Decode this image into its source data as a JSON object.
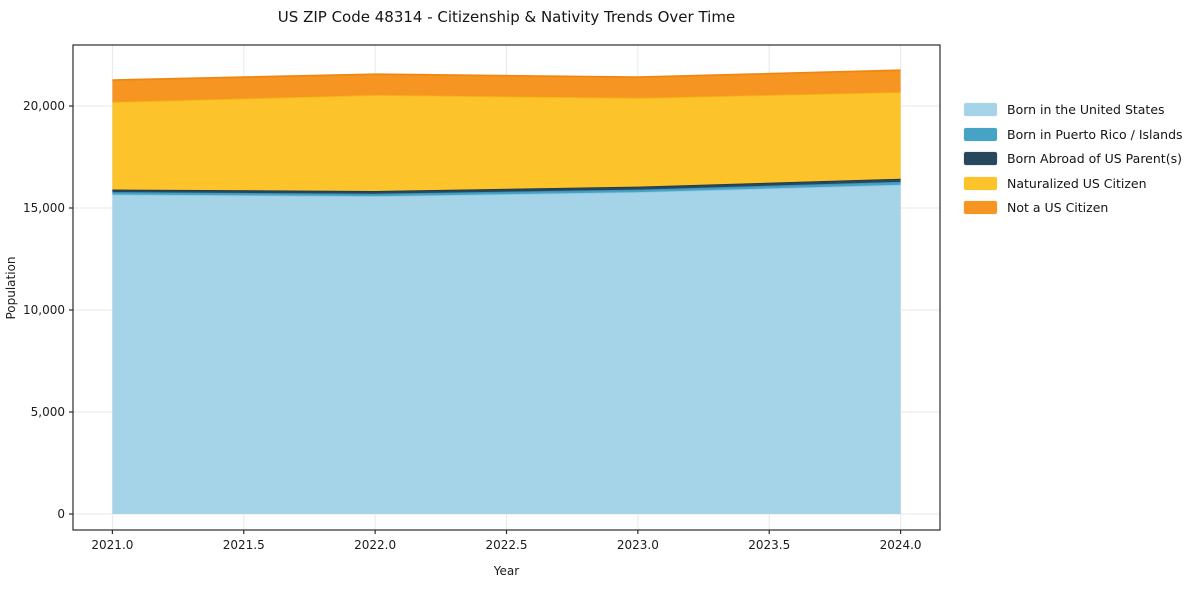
{
  "chart_data": {
    "type": "area",
    "stacked": true,
    "title": "US ZIP Code 48314 - Citizenship & Nativity Trends Over Time",
    "xlabel": "Year",
    "ylabel": "Population",
    "x": [
      2021,
      2022,
      2023,
      2024
    ],
    "series": [
      {
        "name": "Born in the United States",
        "color": "#a5d3e8",
        "edge_color": "#8fc7e0",
        "values": [
          15660,
          15580,
          15780,
          16140
        ]
      },
      {
        "name": "Born in Puerto Rico / Islands",
        "color": "#46a3c6",
        "edge_color": "#3d95b8",
        "values": [
          120,
          120,
          120,
          145
        ]
      },
      {
        "name": "Born Abroad of US Parent(s)",
        "color": "#27485c",
        "edge_color": "#1f3c4e",
        "values": [
          125,
          135,
          150,
          150
        ]
      },
      {
        "name": "Naturalized US Citizen",
        "color": "#fdc32b",
        "edge_color": "#f6b513",
        "values": [
          4290,
          4705,
          4345,
          4245
        ]
      },
      {
        "name": "Not a US Citizen",
        "color": "#f79522",
        "edge_color": "#ee8712",
        "values": [
          1075,
          1020,
          1020,
          1075
        ]
      }
    ],
    "xlim": [
      2020.85,
      2024.15
    ],
    "ylim": [
      -784,
      22990
    ],
    "x_ticks": [
      2021.0,
      2021.5,
      2022.0,
      2022.5,
      2023.0,
      2023.5,
      2024.0
    ],
    "x_tick_labels": [
      "2021.0",
      "2021.5",
      "2022.0",
      "2022.5",
      "2023.0",
      "2023.5",
      "2024.0"
    ],
    "y_ticks": [
      0,
      5000,
      10000,
      15000,
      20000
    ],
    "y_tick_labels": [
      "0",
      "5,000",
      "10,000",
      "15,000",
      "20,000"
    ],
    "grid": true,
    "legend_position": "right of plot"
  },
  "style": {
    "grid_color": "#e8e8e8",
    "spine_color": "#2b2b2b",
    "tick_color": "#2b2b2b",
    "background": "#ffffff"
  }
}
